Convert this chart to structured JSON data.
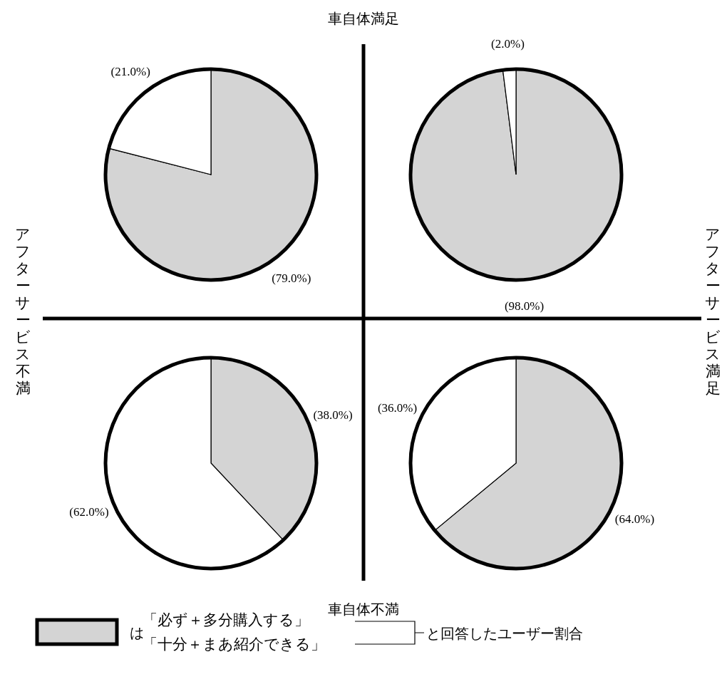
{
  "chart_data": [
    {
      "type": "pie",
      "categories": [
        null,
        null
      ],
      "values": [
        79,
        21
      ],
      "colors": [
        "#d4d4d4",
        "#ffffff"
      ],
      "value_labels": [
        "(79.0%)",
        "(21.0%)"
      ]
    },
    {
      "type": "pie",
      "categories": [
        null,
        null
      ],
      "values": [
        98,
        2
      ],
      "colors": [
        "#d4d4d4",
        "#ffffff"
      ],
      "value_labels": [
        "(98.0%)",
        "(2.0%)"
      ]
    },
    {
      "type": "pie",
      "categories": [
        null,
        null
      ],
      "values": [
        38,
        62
      ],
      "colors": [
        "#d4d4d4",
        "#ffffff"
      ],
      "value_labels": [
        "(38.0%)",
        "(62.0%)"
      ]
    },
    {
      "type": "pie",
      "categories": [
        null,
        null
      ],
      "values": [
        64,
        36
      ],
      "colors": [
        "#d4d4d4",
        "#ffffff"
      ],
      "value_labels": [
        "(64.0%)",
        "(36.0%)"
      ]
    },
    {
      "type": "other",
      "annotations": [
        "車自体満足",
        "車自体不満",
        "アフターサービス不満",
        "アフターサービス満足",
        "は",
        "「必ず＋多分購入する」",
        "「十分＋まあ紹介できる」",
        "と回答したユーザー割合"
      ]
    }
  ]
}
